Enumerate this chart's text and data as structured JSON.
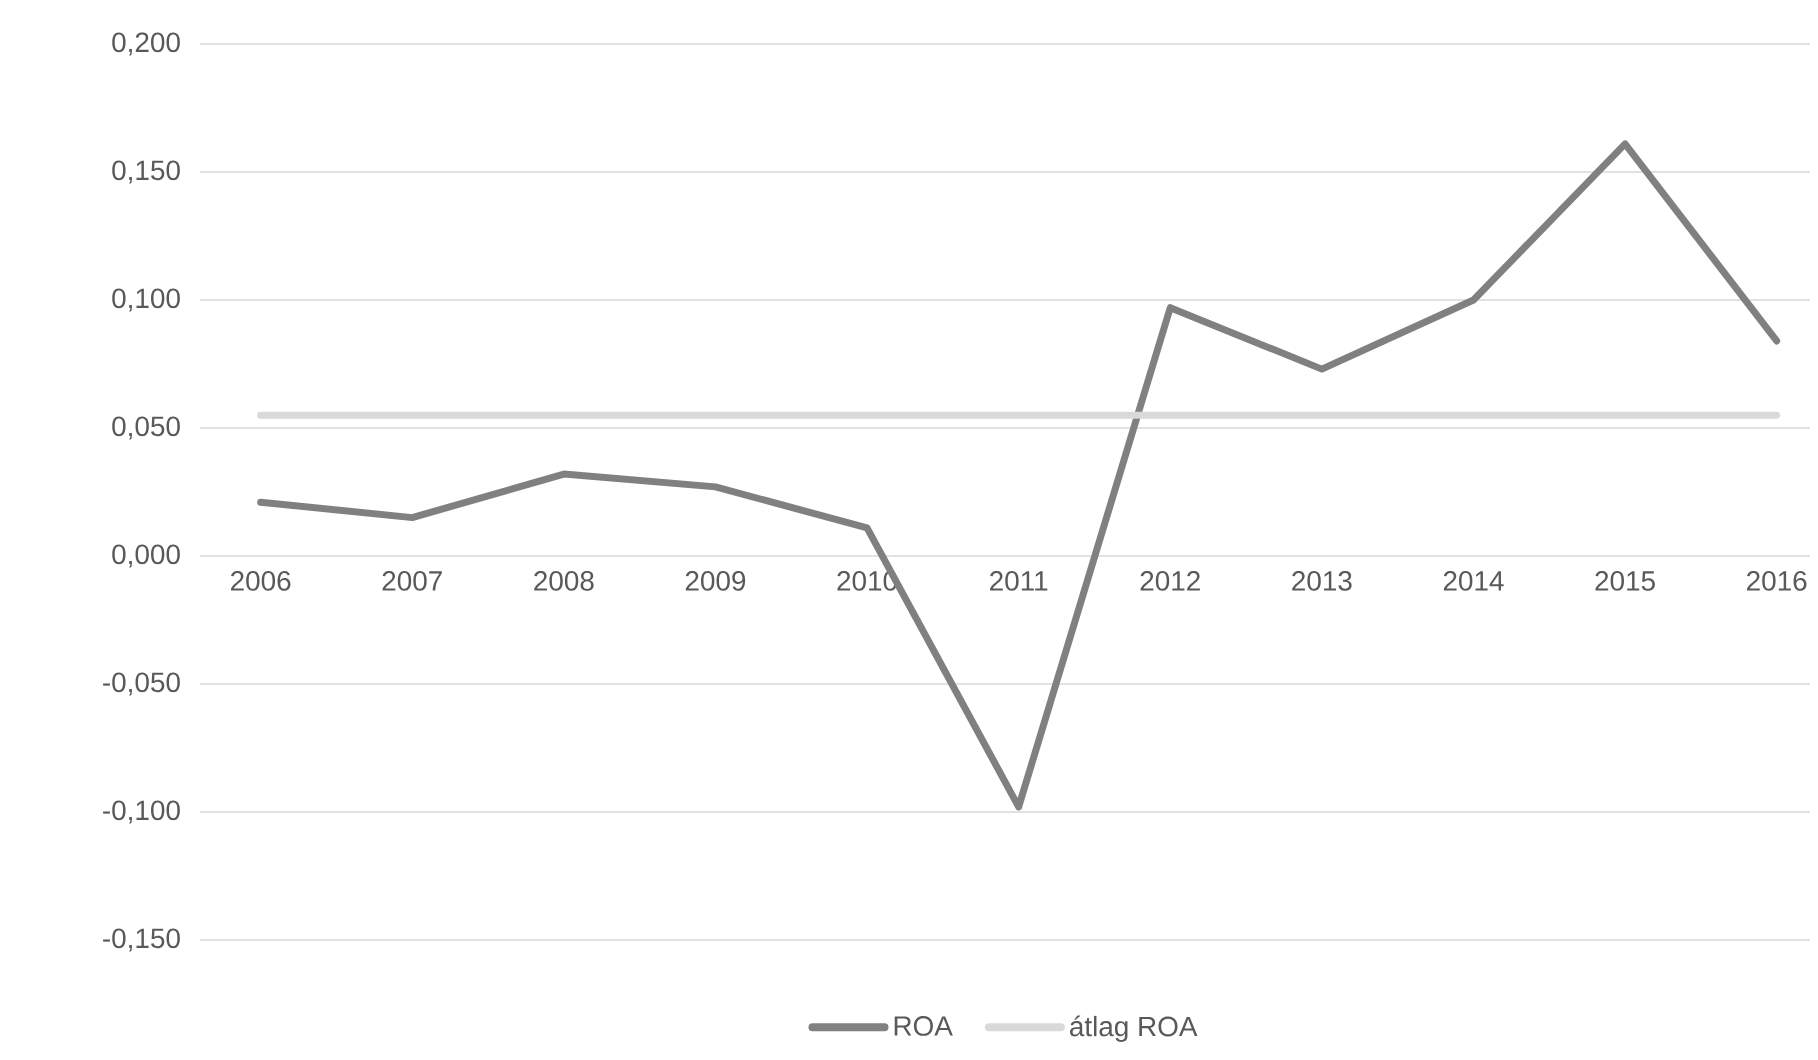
{
  "chart_data": {
    "type": "line",
    "categories": [
      "2006",
      "2007",
      "2008",
      "2009",
      "2010",
      "2011",
      "2012",
      "2013",
      "2014",
      "2015",
      "2016"
    ],
    "series": [
      {
        "name": "ROA",
        "color": "#808080",
        "values": [
          0.021,
          0.015,
          0.032,
          0.027,
          0.011,
          -0.098,
          0.097,
          0.073,
          0.1,
          0.161,
          0.084
        ]
      },
      {
        "name": "átlag ROA",
        "color": "#d9d9d9",
        "values": [
          0.055,
          0.055,
          0.055,
          0.055,
          0.055,
          0.055,
          0.055,
          0.055,
          0.055,
          0.055,
          0.055
        ]
      }
    ],
    "ylim": [
      -0.15,
      0.2
    ],
    "yticks": [
      {
        "value": -0.15,
        "label": "-0,150"
      },
      {
        "value": -0.1,
        "label": "-0,100"
      },
      {
        "value": -0.05,
        "label": "-0,050"
      },
      {
        "value": 0,
        "label": "0,000"
      },
      {
        "value": 0.05,
        "label": "0,050"
      },
      {
        "value": 0.1,
        "label": "0,100"
      },
      {
        "value": 0.15,
        "label": "0,150"
      },
      {
        "value": 0.2,
        "label": "0,200"
      }
    ],
    "grid": "y",
    "legend": "bottom",
    "marker": "none",
    "line_style": "solid"
  }
}
